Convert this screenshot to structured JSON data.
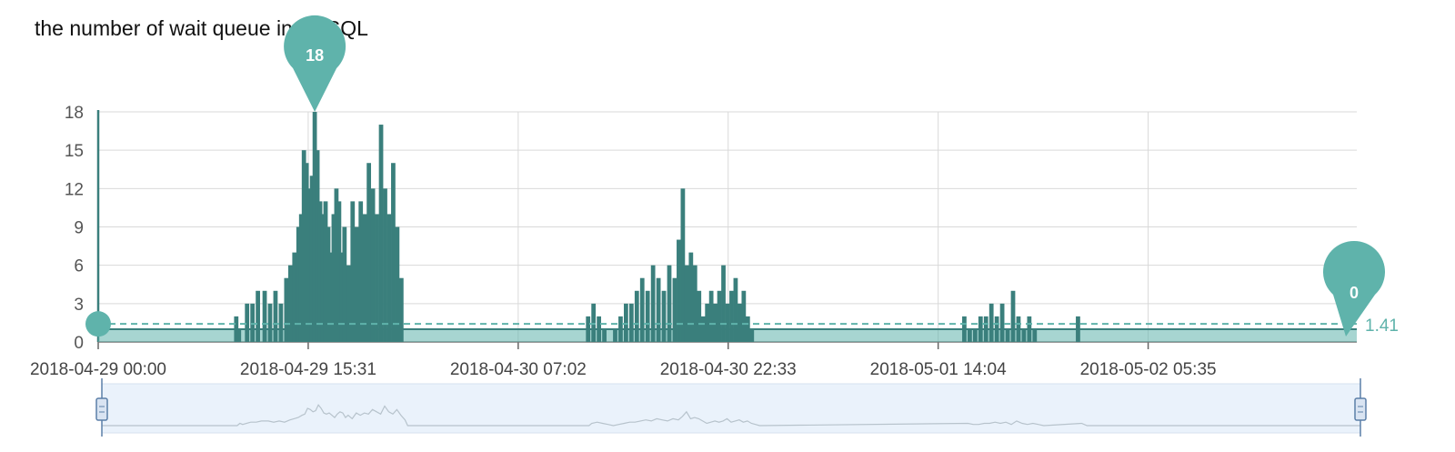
{
  "chart_data": {
    "type": "bar",
    "title": "the number of wait queue in MySQL",
    "xlabel": "",
    "ylabel": "",
    "ylim": [
      0,
      18
    ],
    "y_ticks": [
      "0",
      "3",
      "6",
      "9",
      "12",
      "15",
      "18"
    ],
    "x_ticks": [
      "2018-04-29 00:00",
      "2018-04-29 15:31",
      "2018-04-30 07:02",
      "2018-04-30 22:33",
      "2018-05-01 14:04",
      "2018-05-02 05:35"
    ],
    "x_range_hours": [
      0,
      93
    ],
    "x_unit": "hours since 2018-04-29 00:00",
    "grid": true,
    "mark_max": {
      "label": "18",
      "value": 18,
      "x_hours": 16.0
    },
    "mark_last": {
      "label": "0",
      "value": 0
    },
    "mean_line": {
      "label": "1.41",
      "value": 1.41,
      "style": "dashed"
    },
    "colors": {
      "bar": "#3a7f7c",
      "accent": "#5fb3ab",
      "grid": "#d9d9d9",
      "zoom_fill": "#eaf2fb"
    },
    "series": [
      {
        "values": [
          [
            0.0,
            0
          ],
          [
            10.0,
            0
          ],
          [
            10.2,
            2
          ],
          [
            10.4,
            1
          ],
          [
            11.0,
            3
          ],
          [
            11.4,
            3
          ],
          [
            11.8,
            4
          ],
          [
            12.3,
            4
          ],
          [
            12.7,
            3
          ],
          [
            13.1,
            4
          ],
          [
            13.5,
            3
          ],
          [
            13.9,
            5
          ],
          [
            14.2,
            6
          ],
          [
            14.5,
            7
          ],
          [
            14.8,
            9
          ],
          [
            15.0,
            10
          ],
          [
            15.2,
            15
          ],
          [
            15.4,
            14
          ],
          [
            15.6,
            12
          ],
          [
            15.8,
            13
          ],
          [
            16.0,
            18
          ],
          [
            16.2,
            15
          ],
          [
            16.4,
            11
          ],
          [
            16.6,
            10
          ],
          [
            16.8,
            11
          ],
          [
            17.0,
            9
          ],
          [
            17.2,
            7
          ],
          [
            17.4,
            10
          ],
          [
            17.6,
            12
          ],
          [
            17.8,
            11
          ],
          [
            18.0,
            7
          ],
          [
            18.2,
            9
          ],
          [
            18.5,
            6
          ],
          [
            18.8,
            11
          ],
          [
            19.1,
            9
          ],
          [
            19.4,
            11
          ],
          [
            19.7,
            10
          ],
          [
            20.0,
            14
          ],
          [
            20.3,
            12
          ],
          [
            20.6,
            10
          ],
          [
            20.9,
            17
          ],
          [
            21.2,
            12
          ],
          [
            21.5,
            10
          ],
          [
            21.8,
            14
          ],
          [
            22.1,
            9
          ],
          [
            22.4,
            5
          ],
          [
            22.6,
            0
          ],
          [
            36.0,
            0
          ],
          [
            36.2,
            2
          ],
          [
            36.6,
            3
          ],
          [
            37.0,
            2
          ],
          [
            37.4,
            1
          ],
          [
            37.8,
            0
          ],
          [
            38.2,
            1
          ],
          [
            38.6,
            2
          ],
          [
            39.0,
            3
          ],
          [
            39.4,
            3
          ],
          [
            39.8,
            4
          ],
          [
            40.2,
            5
          ],
          [
            40.6,
            4
          ],
          [
            41.0,
            6
          ],
          [
            41.4,
            5
          ],
          [
            41.8,
            4
          ],
          [
            42.2,
            6
          ],
          [
            42.6,
            5
          ],
          [
            42.9,
            8
          ],
          [
            43.2,
            12
          ],
          [
            43.5,
            6
          ],
          [
            43.8,
            7
          ],
          [
            44.1,
            6
          ],
          [
            44.4,
            4
          ],
          [
            44.7,
            2
          ],
          [
            45.0,
            3
          ],
          [
            45.3,
            4
          ],
          [
            45.6,
            3
          ],
          [
            45.9,
            4
          ],
          [
            46.2,
            6
          ],
          [
            46.5,
            3
          ],
          [
            46.8,
            4
          ],
          [
            47.1,
            5
          ],
          [
            47.4,
            3
          ],
          [
            47.7,
            4
          ],
          [
            48.0,
            2
          ],
          [
            48.3,
            1
          ],
          [
            48.6,
            0
          ],
          [
            64.0,
            2
          ],
          [
            64.4,
            1
          ],
          [
            64.8,
            1
          ],
          [
            65.2,
            2
          ],
          [
            65.6,
            2
          ],
          [
            66.0,
            3
          ],
          [
            66.4,
            2
          ],
          [
            66.8,
            3
          ],
          [
            67.2,
            1
          ],
          [
            67.6,
            4
          ],
          [
            68.0,
            2
          ],
          [
            68.4,
            1
          ],
          [
            68.8,
            2
          ],
          [
            69.2,
            1
          ],
          [
            69.6,
            0
          ],
          [
            72.4,
            2
          ],
          [
            72.8,
            0
          ],
          [
            93.0,
            0
          ]
        ]
      }
    ]
  }
}
